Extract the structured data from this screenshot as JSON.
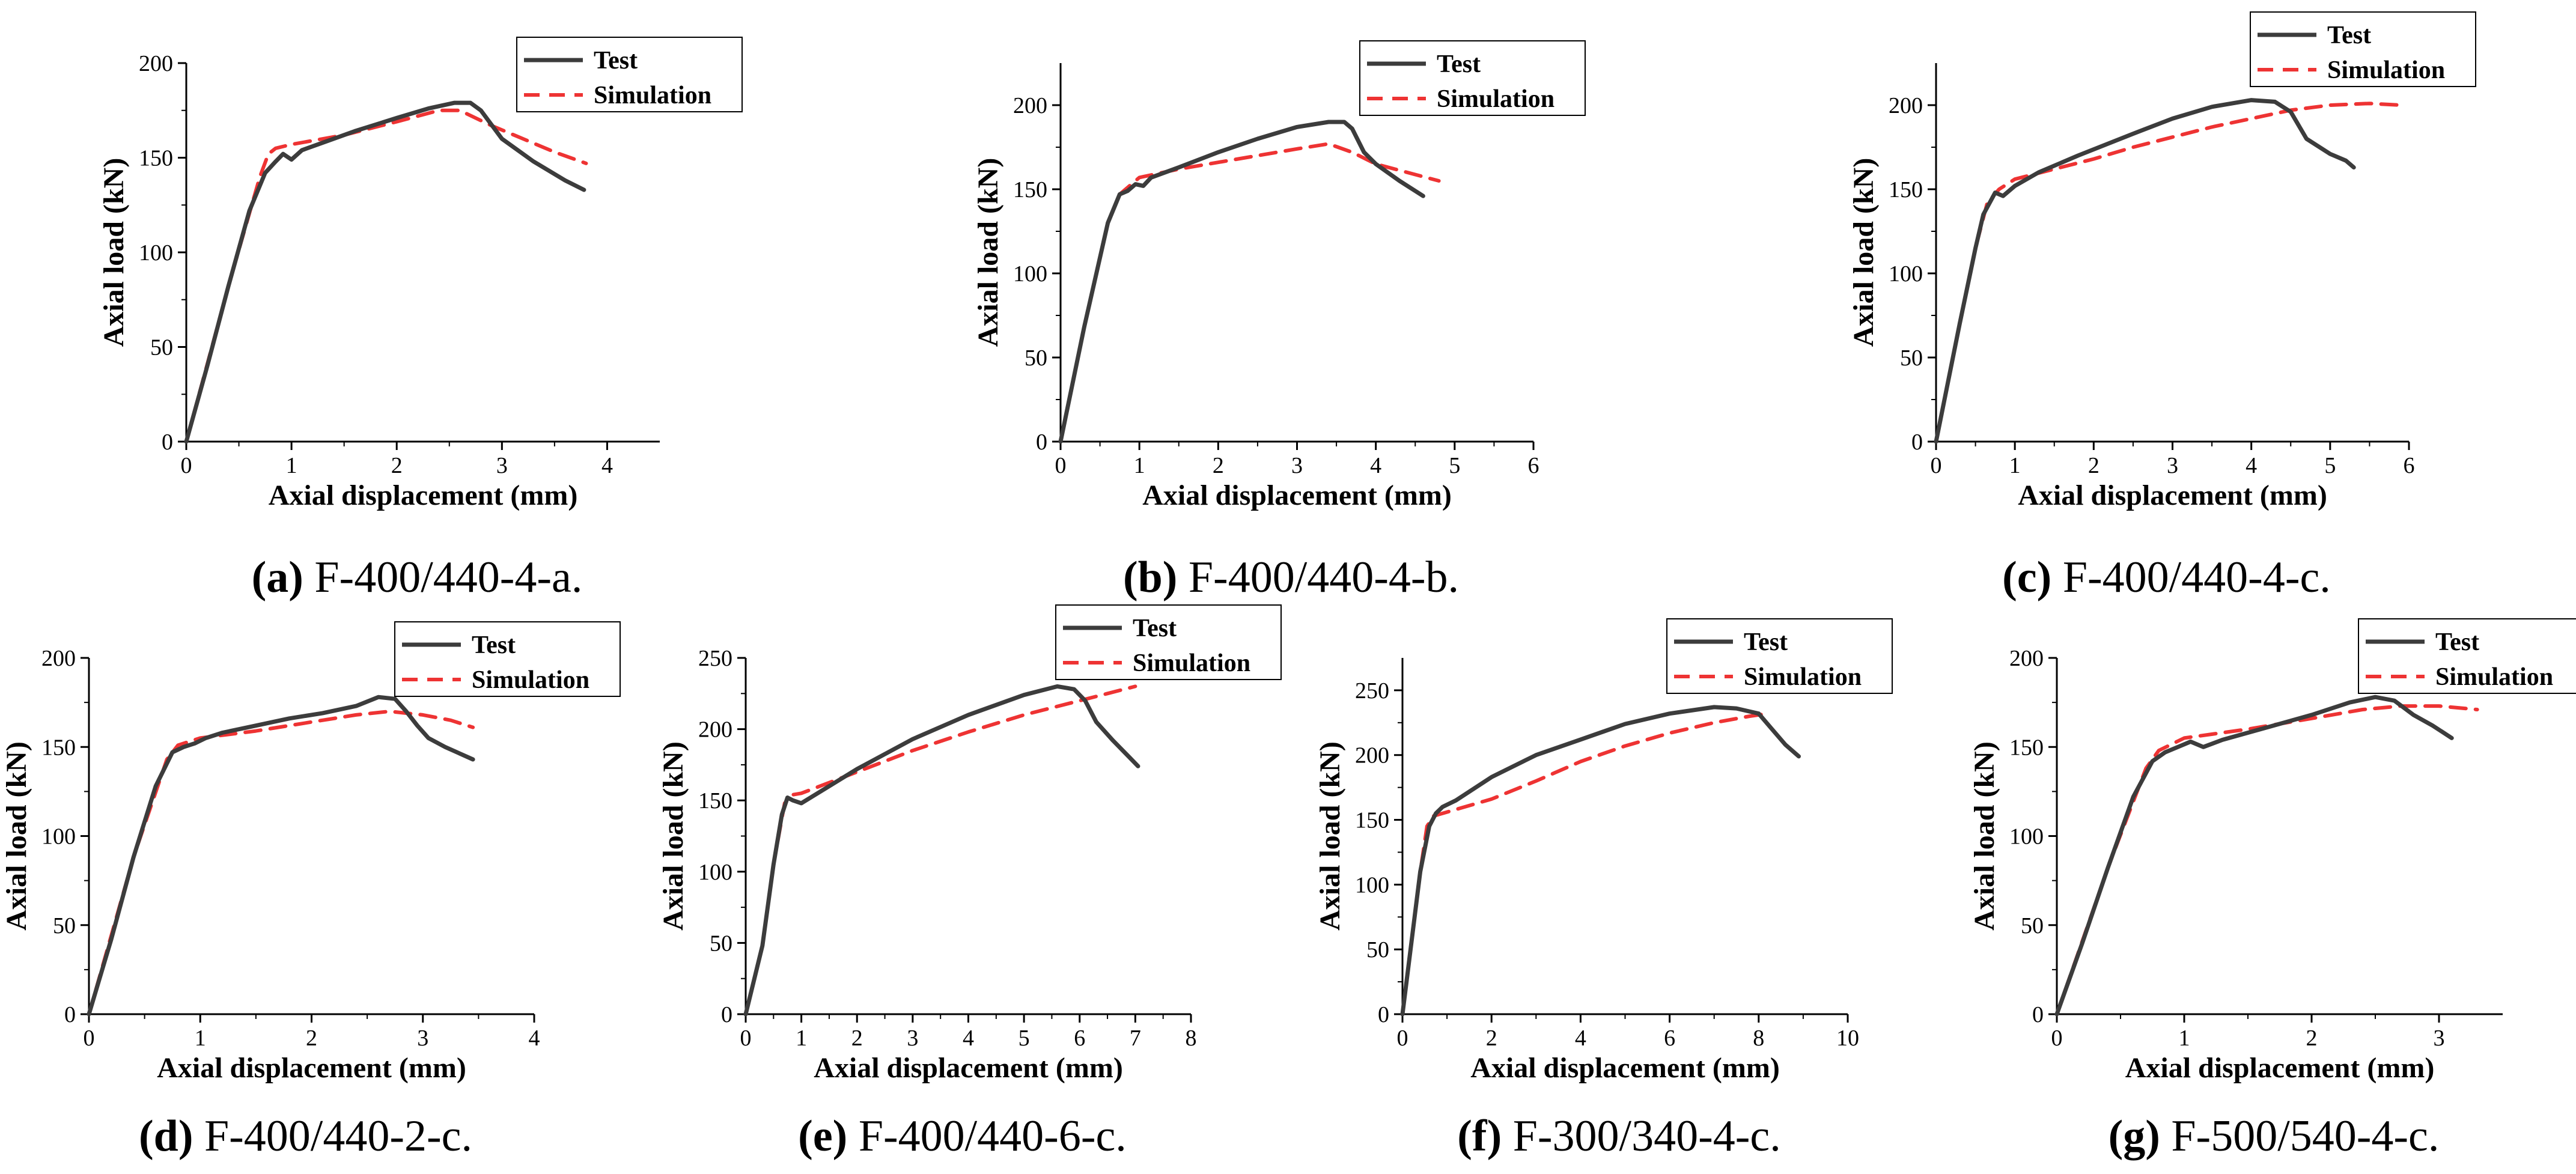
{
  "colors": {
    "test": "#3c3c3c",
    "simulation": "#ee3333",
    "axis": "#000000"
  },
  "chart_data": [
    {
      "type": "line",
      "id": "a",
      "caption_letter": "(a)",
      "caption_text": " F-400/440-4-a.",
      "xlabel": "Axial displacement (mm)",
      "ylabel": "Axial load (kN)",
      "xlim": [
        0,
        4.5
      ],
      "ylim": [
        0,
        200
      ],
      "xticks": [
        0,
        1,
        2,
        3,
        4
      ],
      "yticks": [
        0,
        50,
        100,
        150,
        200
      ],
      "legend_position": "top-right",
      "series": [
        {
          "name": "Test",
          "style": "solid",
          "x": [
            0,
            0.2,
            0.4,
            0.6,
            0.75,
            0.85,
            0.92,
            1.0,
            1.1,
            1.3,
            1.6,
            2.0,
            2.3,
            2.55,
            2.7,
            2.8,
            3.0,
            3.3,
            3.6,
            3.78
          ],
          "y": [
            0,
            40,
            82,
            122,
            142,
            148,
            152,
            149,
            154,
            158,
            164,
            171,
            176,
            179,
            179,
            175,
            160,
            148,
            138,
            133
          ]
        },
        {
          "name": "Simulation",
          "style": "dashed",
          "x": [
            0,
            0.4,
            0.7,
            0.78,
            0.85,
            1.0,
            1.5,
            2.0,
            2.4,
            2.6,
            2.9,
            3.2,
            3.5,
            3.8
          ],
          "y": [
            0,
            82,
            140,
            152,
            155,
            157,
            162,
            169,
            175,
            175,
            167,
            160,
            153,
            147
          ]
        }
      ]
    },
    {
      "type": "line",
      "id": "b",
      "caption_letter": "(b)",
      "caption_text": " F-400/440-4-b.",
      "xlabel": "Axial displacement (mm)",
      "ylabel": "Axial load (kN)",
      "xlim": [
        0,
        6
      ],
      "ylim": [
        0,
        225
      ],
      "xticks": [
        0,
        1,
        2,
        3,
        4,
        5,
        6
      ],
      "yticks": [
        0,
        50,
        100,
        150,
        200
      ],
      "legend_position": "top-right",
      "series": [
        {
          "name": "Test",
          "style": "solid",
          "x": [
            0,
            0.3,
            0.6,
            0.75,
            0.85,
            0.95,
            1.05,
            1.15,
            1.5,
            2.0,
            2.5,
            3.0,
            3.4,
            3.6,
            3.7,
            3.85,
            4.0,
            4.3,
            4.6
          ],
          "y": [
            0,
            68,
            130,
            147,
            149,
            153,
            152,
            157,
            163,
            172,
            180,
            187,
            190,
            190,
            186,
            172,
            165,
            155,
            146
          ]
        },
        {
          "name": "Simulation",
          "style": "dashed",
          "x": [
            0,
            0.3,
            0.6,
            0.75,
            1.0,
            1.5,
            2.0,
            2.5,
            3.0,
            3.4,
            3.7,
            4.0,
            4.4,
            4.8
          ],
          "y": [
            0,
            68,
            130,
            147,
            157,
            162,
            166,
            170,
            174,
            177,
            172,
            165,
            160,
            155
          ]
        }
      ]
    },
    {
      "type": "line",
      "id": "c",
      "caption_letter": "(c)",
      "caption_text": " F-400/440-4-c.",
      "xlabel": "Axial displacement (mm)",
      "ylabel": "Axial load (kN)",
      "xlim": [
        0,
        6
      ],
      "ylim": [
        0,
        225
      ],
      "xticks": [
        0,
        1,
        2,
        3,
        4,
        5,
        6
      ],
      "yticks": [
        0,
        50,
        100,
        150,
        200
      ],
      "legend_position": "top-right",
      "series": [
        {
          "name": "Test",
          "style": "solid",
          "x": [
            0,
            0.3,
            0.5,
            0.6,
            0.75,
            0.85,
            1.0,
            1.3,
            1.8,
            2.5,
            3.0,
            3.5,
            4.0,
            4.3,
            4.5,
            4.7,
            5.0,
            5.2,
            5.3
          ],
          "y": [
            0,
            70,
            115,
            135,
            148,
            146,
            152,
            160,
            170,
            183,
            192,
            199,
            203,
            202,
            196,
            180,
            171,
            167,
            163
          ]
        },
        {
          "name": "Simulation",
          "style": "dashed",
          "x": [
            0,
            0.3,
            0.5,
            0.65,
            0.8,
            1.0,
            1.5,
            2.0,
            2.5,
            3.0,
            3.5,
            4.0,
            4.5,
            5.0,
            5.5,
            5.9
          ],
          "y": [
            0,
            70,
            115,
            142,
            150,
            156,
            162,
            168,
            175,
            181,
            187,
            192,
            197,
            200,
            201,
            200
          ]
        }
      ]
    },
    {
      "type": "line",
      "id": "d",
      "caption_letter": "(d)",
      "caption_text": " F-400/440-2-c.",
      "xlabel": "Axial displacement (mm)",
      "ylabel": "Axial load (kN)",
      "xlim": [
        0,
        4
      ],
      "ylim": [
        0,
        200
      ],
      "xticks": [
        0,
        1,
        2,
        3,
        4
      ],
      "yticks": [
        0,
        50,
        100,
        150,
        200
      ],
      "legend_position": "top-right",
      "series": [
        {
          "name": "Test",
          "style": "solid",
          "x": [
            0,
            0.2,
            0.4,
            0.6,
            0.75,
            0.85,
            0.95,
            1.05,
            1.2,
            1.5,
            1.8,
            2.1,
            2.4,
            2.6,
            2.75,
            2.85,
            2.95,
            3.05,
            3.2,
            3.45
          ],
          "y": [
            0,
            42,
            88,
            128,
            147,
            150,
            152,
            155,
            158,
            162,
            166,
            169,
            173,
            178,
            177,
            170,
            162,
            155,
            150,
            143
          ]
        },
        {
          "name": "Simulation",
          "style": "dashed",
          "x": [
            0,
            0.4,
            0.7,
            0.8,
            1.0,
            1.5,
            2.0,
            2.4,
            2.7,
            3.0,
            3.25,
            3.45
          ],
          "y": [
            0,
            88,
            143,
            151,
            155,
            159,
            164,
            168,
            170,
            168,
            165,
            161
          ]
        }
      ]
    },
    {
      "type": "line",
      "id": "e",
      "caption_letter": "(e)",
      "caption_text": " F-400/440-6-c.",
      "xlabel": "Axial displacement (mm)",
      "ylabel": "Axial load (kN)",
      "xlim": [
        0,
        8
      ],
      "ylim": [
        0,
        250
      ],
      "xticks": [
        0,
        1,
        2,
        3,
        4,
        5,
        6,
        7,
        8
      ],
      "yticks": [
        0,
        50,
        100,
        150,
        200,
        250
      ],
      "legend_position": "top-right",
      "series": [
        {
          "name": "Test",
          "style": "solid",
          "x": [
            0,
            0.3,
            0.5,
            0.65,
            0.75,
            0.85,
            1.0,
            1.5,
            2.0,
            3.0,
            4.0,
            5.0,
            5.6,
            5.9,
            6.1,
            6.3,
            6.6,
            6.9,
            7.05
          ],
          "y": [
            0,
            48,
            105,
            140,
            152,
            150,
            148,
            160,
            172,
            193,
            210,
            224,
            230,
            228,
            220,
            205,
            192,
            180,
            174
          ]
        },
        {
          "name": "Simulation",
          "style": "dashed",
          "x": [
            0,
            0.3,
            0.5,
            0.7,
            0.85,
            1.0,
            2.0,
            3.0,
            4.0,
            5.0,
            6.0,
            6.5,
            7.0
          ],
          "y": [
            0,
            48,
            105,
            148,
            154,
            155,
            170,
            185,
            198,
            210,
            220,
            225,
            230
          ]
        }
      ]
    },
    {
      "type": "line",
      "id": "f",
      "caption_letter": "(f)",
      "caption_text": " F-300/340-4-c.",
      "xlabel": "Axial displacement (mm)",
      "ylabel": "Axial load (kN)",
      "xlim": [
        0,
        10
      ],
      "ylim": [
        0,
        275
      ],
      "xticks": [
        0,
        2,
        4,
        6,
        8,
        10
      ],
      "yticks": [
        0,
        50,
        100,
        150,
        200,
        250
      ],
      "legend_position": "top-right",
      "series": [
        {
          "name": "Test",
          "style": "solid",
          "x": [
            0,
            0.2,
            0.4,
            0.6,
            0.75,
            0.9,
            1.2,
            2.0,
            3.0,
            4.0,
            5.0,
            6.0,
            7.0,
            7.5,
            8.0,
            8.3,
            8.6,
            8.9
          ],
          "y": [
            0,
            55,
            110,
            145,
            155,
            160,
            165,
            183,
            200,
            212,
            224,
            232,
            237,
            236,
            232,
            220,
            208,
            199
          ]
        },
        {
          "name": "Simulation",
          "style": "dashed",
          "x": [
            0,
            0.2,
            0.4,
            0.55,
            0.7,
            1.0,
            2.0,
            3.0,
            4.0,
            5.0,
            6.0,
            7.0,
            7.8,
            8.2
          ],
          "y": [
            0,
            55,
            110,
            145,
            153,
            156,
            166,
            180,
            195,
            207,
            217,
            225,
            230,
            232
          ]
        }
      ]
    },
    {
      "type": "line",
      "id": "g",
      "caption_letter": "(g)",
      "caption_text": " F-500/540-4-c.",
      "xlabel": "Axial displacement (mm)",
      "ylabel": "Axial load (kN)",
      "xlim": [
        0,
        3.5
      ],
      "ylim": [
        0,
        200
      ],
      "xticks": [
        0,
        1,
        2,
        3
      ],
      "yticks": [
        0,
        50,
        100,
        150,
        200
      ],
      "legend_position": "top-right",
      "series": [
        {
          "name": "Test",
          "style": "solid",
          "x": [
            0,
            0.2,
            0.4,
            0.6,
            0.75,
            0.85,
            0.95,
            1.05,
            1.15,
            1.3,
            1.6,
            2.0,
            2.3,
            2.5,
            2.65,
            2.8,
            2.95,
            3.1
          ],
          "y": [
            0,
            40,
            82,
            122,
            142,
            147,
            150,
            153,
            150,
            154,
            160,
            168,
            175,
            178,
            176,
            168,
            162,
            155
          ]
        },
        {
          "name": "Simulation",
          "style": "dashed",
          "x": [
            0,
            0.4,
            0.7,
            0.8,
            1.0,
            1.5,
            2.0,
            2.4,
            2.7,
            3.0,
            3.3
          ],
          "y": [
            0,
            82,
            138,
            148,
            155,
            160,
            166,
            171,
            173,
            173,
            171
          ]
        }
      ]
    }
  ]
}
